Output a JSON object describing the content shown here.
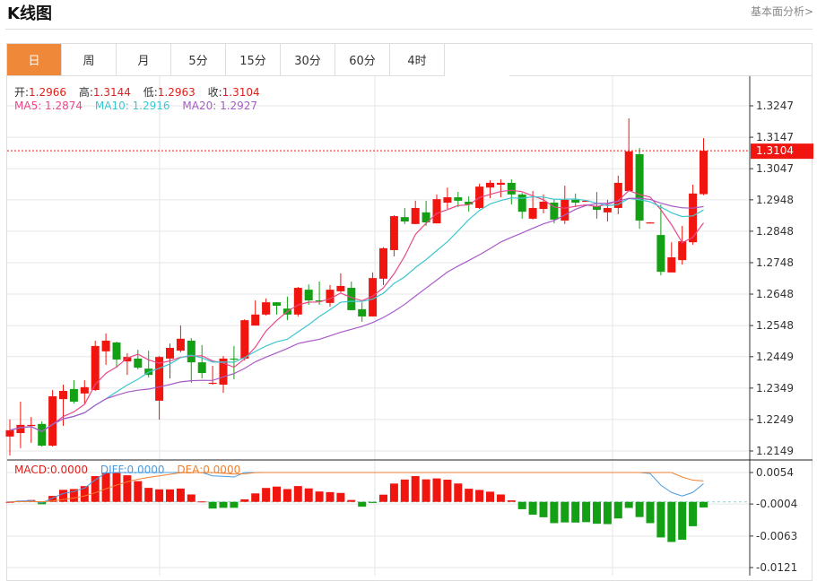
{
  "header": {
    "title": "K线图",
    "link": "基本面分析>"
  },
  "tabs": [
    {
      "label": "日",
      "active": true
    },
    {
      "label": "周"
    },
    {
      "label": "月"
    },
    {
      "label": "5分"
    },
    {
      "label": "15分"
    },
    {
      "label": "30分"
    },
    {
      "label": "60分"
    },
    {
      "label": "4时"
    }
  ],
  "ohlc_info": {
    "open_label": "开:",
    "open": "1.2966",
    "high_label": "高:",
    "high": "1.3144",
    "low_label": "低:",
    "low": "1.2963",
    "close_label": "收:",
    "close": "1.3104"
  },
  "ma_info": {
    "ma5": "MA5: 1.2874",
    "ma10": "MA10: 1.2916",
    "ma20": "MA20: 1.2927"
  },
  "macd_info": {
    "macd": "MACD:0.0000",
    "diff": "DIFF:0.0000",
    "dea": "DEA:0.0000"
  },
  "colors": {
    "up": "#F0150E",
    "down": "#14A014",
    "ma5": "#E8488A",
    "ma10": "#3EC6D0",
    "ma20": "#A85BC8",
    "diff": "#4A9BE0",
    "dea": "#F08030",
    "active_tab": "#F0883A"
  },
  "chart_data": {
    "type": "candlestick",
    "price_ticks": [
      "1.3247",
      "1.3147",
      "1.3047",
      "1.2948",
      "1.2848",
      "1.2748",
      "1.2648",
      "1.2548",
      "1.2449",
      "1.2349",
      "1.2249",
      "1.2149"
    ],
    "price_range": [
      1.2149,
      1.3247
    ],
    "current_price": "1.3104",
    "macd_ticks": [
      "0.0054",
      "-0.0004",
      "-0.0063",
      "-0.0121"
    ],
    "macd_range": [
      -0.0121,
      0.0054
    ],
    "candles": [
      [
        1.2195,
        1.2249,
        1.2135,
        1.2215
      ],
      [
        1.2206,
        1.2306,
        1.2158,
        1.2232
      ],
      [
        1.223,
        1.2257,
        1.2175,
        1.2232
      ],
      [
        1.2235,
        1.2243,
        1.2163,
        1.2166
      ],
      [
        1.2166,
        1.2343,
        1.2163,
        1.2323
      ],
      [
        1.2314,
        1.236,
        1.2229,
        1.234
      ],
      [
        1.2346,
        1.2374,
        1.23,
        1.2306
      ],
      [
        1.2332,
        1.2374,
        1.23,
        1.2352
      ],
      [
        1.2343,
        1.25,
        1.234,
        1.2483
      ],
      [
        1.2466,
        1.2523,
        1.2423,
        1.25
      ],
      [
        1.2494,
        1.2497,
        1.2414,
        1.244
      ],
      [
        1.2434,
        1.246,
        1.2391,
        1.2448
      ],
      [
        1.2443,
        1.2471,
        1.2409,
        1.2414
      ],
      [
        1.2411,
        1.2468,
        1.2383,
        1.2391
      ],
      [
        1.2309,
        1.2451,
        1.2249,
        1.2448
      ],
      [
        1.2443,
        1.2491,
        1.238,
        1.2477
      ],
      [
        1.2468,
        1.2548,
        1.2463,
        1.2506
      ],
      [
        1.25,
        1.2508,
        1.2366,
        1.2431
      ],
      [
        1.2431,
        1.2486,
        1.238,
        1.2397
      ],
      [
        1.2363,
        1.242,
        1.236,
        1.2366
      ],
      [
        1.236,
        1.2451,
        1.2334,
        1.2443
      ],
      [
        1.2443,
        1.2483,
        1.2377,
        1.244
      ],
      [
        1.2443,
        1.2568,
        1.2437,
        1.2565
      ],
      [
        1.2548,
        1.2628,
        1.2548,
        1.2583
      ],
      [
        1.2583,
        1.2634,
        1.258,
        1.2622
      ],
      [
        1.2622,
        1.2622,
        1.2583,
        1.2611
      ],
      [
        1.2602,
        1.264,
        1.2565,
        1.2583
      ],
      [
        1.2583,
        1.2671,
        1.2577,
        1.2668
      ],
      [
        1.2662,
        1.2679,
        1.2614,
        1.2628
      ],
      [
        1.2628,
        1.2688,
        1.2614,
        1.2625
      ],
      [
        1.262,
        1.2677,
        1.2608,
        1.2662
      ],
      [
        1.2657,
        1.2714,
        1.2654,
        1.2674
      ],
      [
        1.2668,
        1.2688,
        1.2597,
        1.2597
      ],
      [
        1.26,
        1.2622,
        1.256,
        1.2577
      ],
      [
        1.2577,
        1.2717,
        1.2577,
        1.2699
      ],
      [
        1.2697,
        1.2797,
        1.2677,
        1.2794
      ],
      [
        1.2788,
        1.2899,
        1.2768,
        1.2896
      ],
      [
        1.2893,
        1.2922,
        1.2871,
        1.2879
      ],
      [
        1.2871,
        1.2945,
        1.2871,
        1.2922
      ],
      [
        1.2908,
        1.2945,
        1.2865,
        1.2876
      ],
      [
        1.2873,
        1.2965,
        1.2873,
        1.295
      ],
      [
        1.2939,
        1.2987,
        1.2919,
        1.2956
      ],
      [
        1.2956,
        1.2973,
        1.2925,
        1.2945
      ],
      [
        1.2942,
        1.2959,
        1.291,
        1.2933
      ],
      [
        1.2922,
        1.2999,
        1.2919,
        1.299
      ],
      [
        1.2987,
        1.301,
        1.2953,
        1.3002
      ],
      [
        1.2996,
        1.3013,
        1.2956,
        1.3002
      ],
      [
        1.3002,
        1.3013,
        1.2933,
        1.2965
      ],
      [
        1.2965,
        1.297,
        1.2888,
        1.291
      ],
      [
        1.2888,
        1.2976,
        1.2885,
        1.2922
      ],
      [
        1.2919,
        1.2965,
        1.2905,
        1.2942
      ],
      [
        1.2939,
        1.2948,
        1.2873,
        1.2885
      ],
      [
        1.2882,
        1.2993,
        1.2871,
        1.2948
      ],
      [
        1.2948,
        1.2968,
        1.2925,
        1.2939
      ],
      [
        1.2944,
        1.2946,
        1.2943,
        1.2945
      ],
      [
        1.2928,
        1.2973,
        1.2888,
        1.2916
      ],
      [
        1.2908,
        1.2948,
        1.2879,
        1.2922
      ],
      [
        1.2922,
        1.3025,
        1.2902,
        1.3002
      ],
      [
        1.2976,
        1.3207,
        1.2976,
        1.3102
      ],
      [
        1.3093,
        1.3113,
        1.2856,
        1.2882
      ],
      [
        1.2875,
        1.2877,
        1.2874,
        1.2876
      ],
      [
        1.2836,
        1.2933,
        1.2708,
        1.2719
      ],
      [
        1.2717,
        1.2813,
        1.2717,
        1.2765
      ],
      [
        1.2756,
        1.2865,
        1.2742,
        1.2816
      ],
      [
        1.2813,
        1.2996,
        1.2805,
        1.2968
      ],
      [
        1.2966,
        1.3144,
        1.2963,
        1.3104
      ]
    ]
  }
}
